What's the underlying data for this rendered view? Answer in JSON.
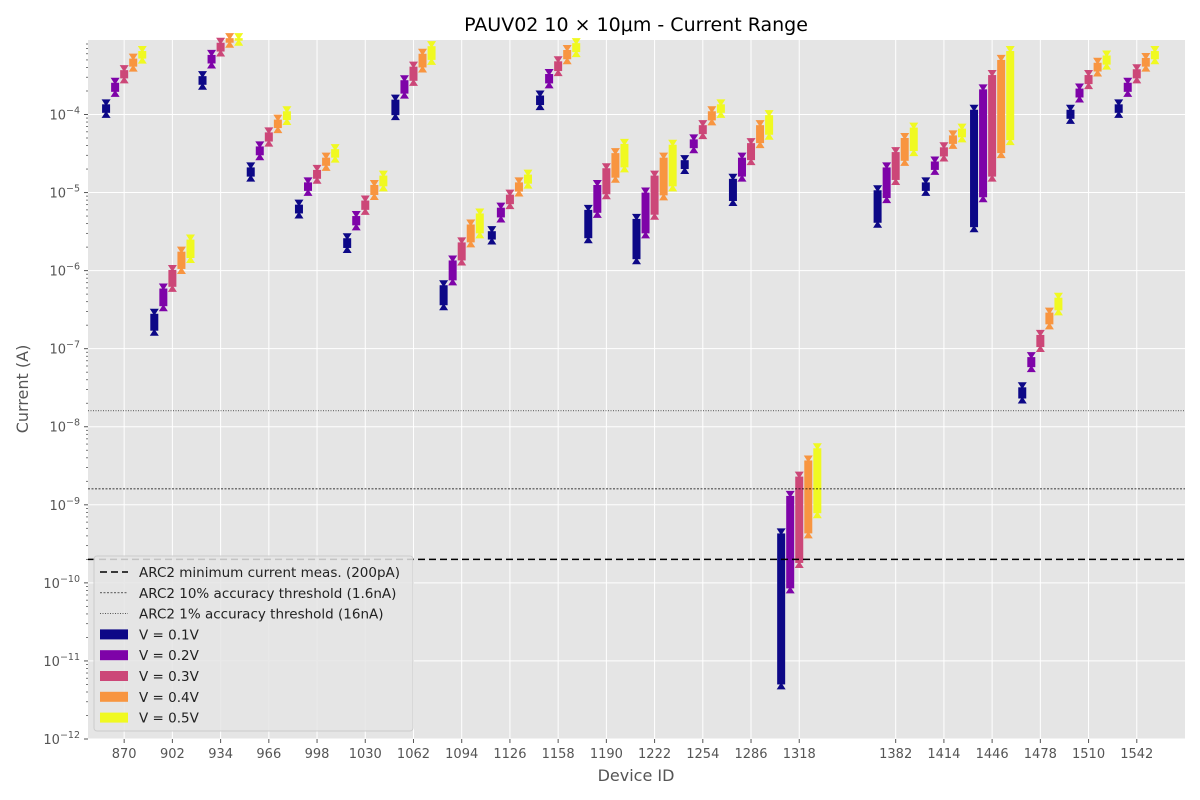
{
  "chart_data": {
    "type": "bar",
    "title": "PAUV02 10 × 10μm - Current Range",
    "xlabel": "Device ID",
    "ylabel": "Current (A)",
    "yscale": "log",
    "ylim": [
      1e-12,
      0.0009
    ],
    "xlim": [
      846,
      1574
    ],
    "grid": true,
    "legend_position": "lower-left",
    "x_ticks": [
      870,
      902,
      934,
      966,
      998,
      1030,
      1062,
      1094,
      1126,
      1158,
      1190,
      1222,
      1254,
      1286,
      1318,
      1382,
      1414,
      1446,
      1478,
      1510,
      1542
    ],
    "y_ticks": [
      {
        "value": 1e-12,
        "base": "10",
        "exp": "−12"
      },
      {
        "value": 1e-11,
        "base": "10",
        "exp": "−11"
      },
      {
        "value": 1e-10,
        "base": "10",
        "exp": "−10"
      },
      {
        "value": 1e-09,
        "base": "10",
        "exp": "−9"
      },
      {
        "value": 1e-08,
        "base": "10",
        "exp": "−8"
      },
      {
        "value": 1e-07,
        "base": "10",
        "exp": "−7"
      },
      {
        "value": 1e-06,
        "base": "10",
        "exp": "−6"
      },
      {
        "value": 1e-05,
        "base": "10",
        "exp": "−5"
      },
      {
        "value": 0.0001,
        "base": "10",
        "exp": "−4"
      }
    ],
    "reference_lines": [
      {
        "label": "ARC2 minimum current meas. (200pA)",
        "value": 2e-10,
        "style": "dashed"
      },
      {
        "label": "ARC2 10% accuracy threshold (1.6nA)",
        "value": 1.6e-09,
        "style": "dotted"
      },
      {
        "label": "ARC2 1% accuracy threshold (16nA)",
        "value": 1.6e-08,
        "style": "fine-dotted"
      }
    ],
    "series": [
      {
        "name": "V = 0.1V",
        "color": "#0d0887",
        "offset": -12
      },
      {
        "name": "V = 0.2V",
        "color": "#7e03a8",
        "offset": -6
      },
      {
        "name": "V = 0.3V",
        "color": "#cc4778",
        "offset": 0
      },
      {
        "name": "V = 0.4V",
        "color": "#f89540",
        "offset": 6
      },
      {
        "name": "V = 0.5V",
        "color": "#f0f921",
        "offset": 12
      }
    ],
    "ranges": [
      {
        "device": 870,
        "values": [
          [
            0.000105,
            0.000135
          ],
          [
            0.000195,
            0.000255
          ],
          [
            0.00029,
            0.00037
          ],
          [
            0.00041,
            0.00052
          ],
          [
            0.00052,
            0.00065
          ]
        ]
      },
      {
        "device": 902,
        "values": [
          [
            1.7e-07,
            2.8e-07
          ],
          [
            3.5e-07,
            5.9e-07
          ],
          [
            6.2e-07,
            1.02e-06
          ],
          [
            1.05e-06,
            1.75e-06
          ],
          [
            1.45e-06,
            2.5e-06
          ]
        ]
      },
      {
        "device": 934,
        "values": [
          [
            0.00024,
            0.00031
          ],
          [
            0.00045,
            0.00058
          ],
          [
            0.00064,
            0.00083
          ],
          [
            0.00083,
            0.00095
          ],
          [
            0.00088,
            0.00095
          ]
        ]
      },
      {
        "device": 966,
        "values": [
          [
            1.6e-05,
            2.1e-05
          ],
          [
            3e-05,
            3.9e-05
          ],
          [
            4.5e-05,
            5.9e-05
          ],
          [
            6.7e-05,
            8.6e-05
          ],
          [
            8.5e-05,
            0.00011
          ]
        ]
      },
      {
        "device": 998,
        "values": [
          [
            5.4e-06,
            7e-06
          ],
          [
            1.05e-05,
            1.35e-05
          ],
          [
            1.5e-05,
            1.95e-05
          ],
          [
            2.2e-05,
            2.8e-05
          ],
          [
            2.8e-05,
            3.6e-05
          ]
        ]
      },
      {
        "device": 1030,
        "values": [
          [
            1.95e-06,
            2.6e-06
          ],
          [
            3.8e-06,
            5e-06
          ],
          [
            6e-06,
            7.9e-06
          ],
          [
            9.3e-06,
            1.25e-05
          ],
          [
            1.2e-05,
            1.65e-05
          ]
        ]
      },
      {
        "device": 1062,
        "values": [
          [
            9.8e-05,
            0.000155
          ],
          [
            0.000185,
            0.000275
          ],
          [
            0.00027,
            0.00041
          ],
          [
            0.0004,
            0.0006
          ],
          [
            0.0005,
            0.00075
          ]
        ]
      },
      {
        "device": 1094,
        "values": [
          [
            3.6e-07,
            6.5e-07
          ],
          [
            7.5e-07,
            1.35e-06
          ],
          [
            1.35e-06,
            2.3e-06
          ],
          [
            2.3e-06,
            3.9e-06
          ],
          [
            3e-06,
            5.4e-06
          ]
        ]
      },
      {
        "device": 1126,
        "values": [
          [
            2.5e-06,
            3.2e-06
          ],
          [
            4.8e-06,
            6.4e-06
          ],
          [
            7.1e-06,
            9.4e-06
          ],
          [
            1.03e-05,
            1.35e-05
          ],
          [
            1.3e-05,
            1.7e-05
          ]
        ]
      },
      {
        "device": 1158,
        "values": [
          [
            0.000132,
            0.000175
          ],
          [
            0.00025,
            0.00033
          ],
          [
            0.00036,
            0.00048
          ],
          [
            0.00051,
            0.00067
          ],
          [
            0.00063,
            0.00082
          ]
        ]
      },
      {
        "device": 1190,
        "values": [
          [
            2.6e-06,
            6e-06
          ],
          [
            5.5e-06,
            1.25e-05
          ],
          [
            9.5e-06,
            2.05e-05
          ],
          [
            1.55e-05,
            3.2e-05
          ],
          [
            2.1e-05,
            4.2e-05
          ]
        ]
      },
      {
        "device": 1222,
        "values": [
          [
            1.4e-06,
            4.6e-06
          ],
          [
            3e-06,
            1e-05
          ],
          [
            5.2e-06,
            1.65e-05
          ],
          [
            9.2e-06,
            2.8e-05
          ],
          [
            1.2e-05,
            4.1e-05
          ]
        ]
      },
      {
        "device": 1254,
        "values": [
          [
            2e-05,
            2.6e-05
          ],
          [
            3.7e-05,
            4.8e-05
          ],
          [
            5.6e-05,
            7.3e-05
          ],
          [
            8.4e-05,
            0.00011
          ],
          [
            0.000105,
            0.000135
          ]
        ]
      },
      {
        "device": 1286,
        "values": [
          [
            7.8e-06,
            1.5e-05
          ],
          [
            1.6e-05,
            2.8e-05
          ],
          [
            2.6e-05,
            4.3e-05
          ],
          [
            4.3e-05,
            7.3e-05
          ],
          [
            5.5e-05,
            9.8e-05
          ]
        ]
      },
      {
        "device": 1318,
        "values": [
          [
            5e-12,
            4.3e-10
          ],
          [
            8.5e-11,
            1.3e-09
          ],
          [
            1.8e-10,
            2.3e-09
          ],
          [
            4.3e-10,
            3.7e-09
          ],
          [
            7.8e-10,
            5.3e-09
          ]
        ]
      },
      {
        "device": 1382,
        "values": [
          [
            4.1e-06,
            1.07e-05
          ],
          [
            8.5e-06,
            2.1e-05
          ],
          [
            1.45e-05,
            3.3e-05
          ],
          [
            2.55e-05,
            5e-05
          ],
          [
            3.4e-05,
            6.8e-05
          ]
        ]
      },
      {
        "device": 1414,
        "values": [
          [
            1.05e-05,
            1.35e-05
          ],
          [
            1.95e-05,
            2.5e-05
          ],
          [
            2.9e-05,
            3.8e-05
          ],
          [
            4.2e-05,
            5.4e-05
          ],
          [
            5.1e-05,
            6.6e-05
          ]
        ]
      },
      {
        "device": 1446,
        "values": [
          [
            3.6e-06,
            0.000115
          ],
          [
            8.7e-06,
            0.00021
          ],
          [
            1.6e-05,
            0.00032
          ],
          [
            3.2e-05,
            0.0005
          ],
          [
            4.7e-05,
            0.00065
          ]
        ]
      },
      {
        "device": 1478,
        "values": [
          [
            2.3e-08,
            3.2e-08
          ],
          [
            5.8e-08,
            7.8e-08
          ],
          [
            1.05e-07,
            1.5e-07
          ],
          [
            2.05e-07,
            2.9e-07
          ],
          [
            3.1e-07,
            4.5e-07
          ]
        ]
      },
      {
        "device": 1510,
        "values": [
          [
            8.8e-05,
            0.000115
          ],
          [
            0.000165,
            0.000215
          ],
          [
            0.000245,
            0.00032
          ],
          [
            0.000355,
            0.00046
          ],
          [
            0.000435,
            0.00057
          ]
        ]
      },
      {
        "device": 1542,
        "values": [
          [
            0.000105,
            0.000135
          ],
          [
            0.000195,
            0.000255
          ],
          [
            0.00029,
            0.00038
          ],
          [
            0.00041,
            0.00053
          ],
          [
            0.00051,
            0.00065
          ]
        ]
      }
    ]
  }
}
